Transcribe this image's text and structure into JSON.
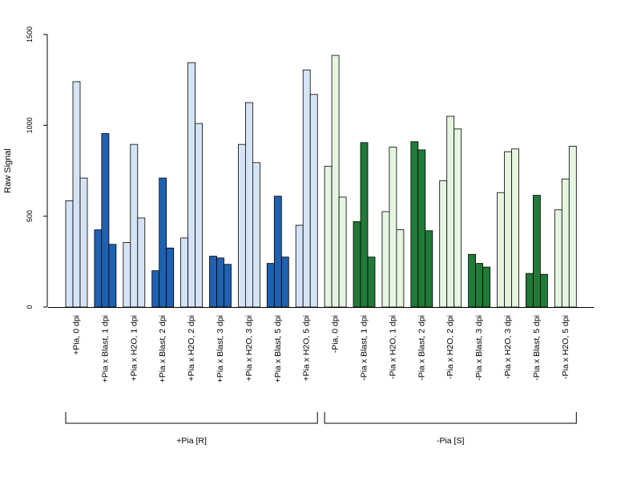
{
  "chart_data": {
    "type": "bar",
    "ylabel": "Raw Signal",
    "ylim": [
      0,
      1500
    ],
    "yticks": [
      0,
      500,
      1000,
      1500
    ],
    "bars_per_category": 3,
    "categories": [
      "+Pia, 0 dpi",
      "+Pia x Blast, 1 dpi",
      "+Pia x H2O, 1 dpi",
      "+Pia x Blast, 2 dpi",
      "+Pia x H2O, 2 dpi",
      "+Pia x Blast, 3 dpi",
      "+Pia x H2O, 3 dpi",
      "+Pia x Blast, 5 dpi",
      "+Pia x H2O, 5 dpi",
      "-Pia, 0 dpi",
      "-Pia x Blast, 1 dpi",
      "-Pia x H2O, 1 dpi",
      "-Pia x Blast, 2 dpi",
      "-Pia x H2O, 2 dpi",
      "-Pia x Blast, 3 dpi",
      "-Pia x H2O, 3 dpi",
      "-Pia x Blast, 5 dpi",
      "-Pia x H2O, 5 dpi"
    ],
    "values": [
      [
        585,
        1240,
        710
      ],
      [
        425,
        955,
        345
      ],
      [
        355,
        895,
        490
      ],
      [
        200,
        710,
        325
      ],
      [
        380,
        1345,
        1010
      ],
      [
        280,
        270,
        235
      ],
      [
        895,
        1125,
        795
      ],
      [
        240,
        610,
        275
      ],
      [
        450,
        1305,
        1170
      ],
      [
        775,
        1385,
        605
      ],
      [
        470,
        905,
        275
      ],
      [
        525,
        880,
        425
      ],
      [
        910,
        865,
        420
      ],
      [
        695,
        1050,
        980
      ],
      [
        290,
        240,
        220
      ],
      [
        630,
        855,
        870
      ],
      [
        185,
        615,
        180
      ],
      [
        535,
        705,
        885
      ]
    ],
    "bar_colors": [
      "#d5e4f5",
      "#2060b0",
      "#d5e4f5",
      "#2060b0",
      "#d5e4f5",
      "#2060b0",
      "#d5e4f5",
      "#2060b0",
      "#d5e4f5",
      "#e5f5e0",
      "#217a37",
      "#e5f5e0",
      "#217a37",
      "#e5f5e0",
      "#217a37",
      "#e5f5e0",
      "#217a37",
      "#e5f5e0"
    ],
    "groups": [
      {
        "label": "+Pia [R]",
        "first": 0,
        "last": 8
      },
      {
        "label": "-Pia [S]",
        "first": 9,
        "last": 17
      }
    ],
    "grid": false,
    "legend": "none"
  }
}
